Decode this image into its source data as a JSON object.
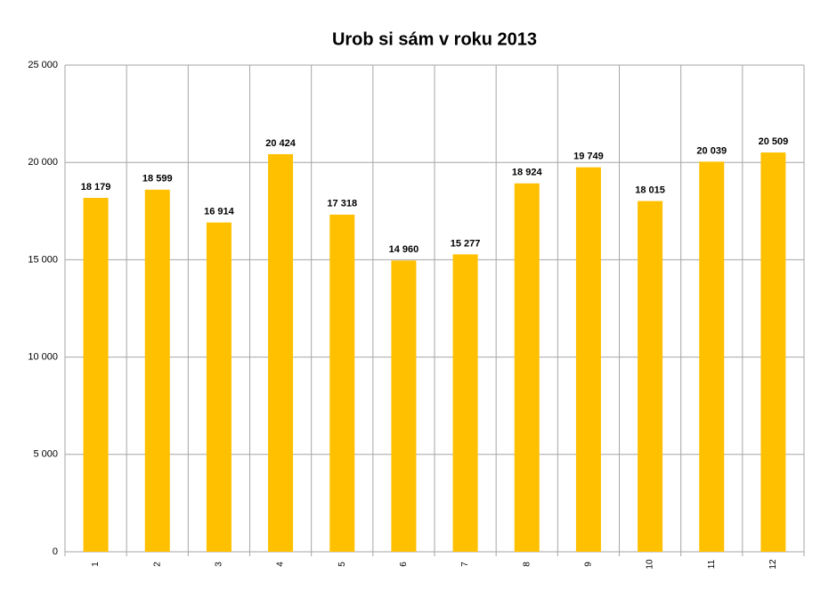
{
  "chart_data": {
    "type": "bar",
    "title": "Urob si sám v roku 2013",
    "categories": [
      "1",
      "2",
      "3",
      "4",
      "5",
      "6",
      "7",
      "8",
      "9",
      "10",
      "11",
      "12"
    ],
    "values": [
      18179,
      18599,
      16914,
      20424,
      17318,
      14960,
      15277,
      18924,
      19749,
      18015,
      20039,
      20509
    ],
    "value_labels": [
      "18 179",
      "18 599",
      "16 914",
      "20 424",
      "17 318",
      "14 960",
      "15 277",
      "18 924",
      "19 749",
      "18 015",
      "20 039",
      "20 509"
    ],
    "color": "#ffc000",
    "ylim": [
      0,
      25000
    ],
    "yticks": [
      0,
      {
        "value": 5000,
        "label": "5 000"
      },
      {
        "value": 10000,
        "label": "10 000"
      },
      {
        "value": 15000,
        "label": "15 000"
      },
      {
        "value": 20000,
        "label": "20 000"
      },
      {
        "value": 25000,
        "label": "25 000"
      }
    ],
    "grid": true
  }
}
